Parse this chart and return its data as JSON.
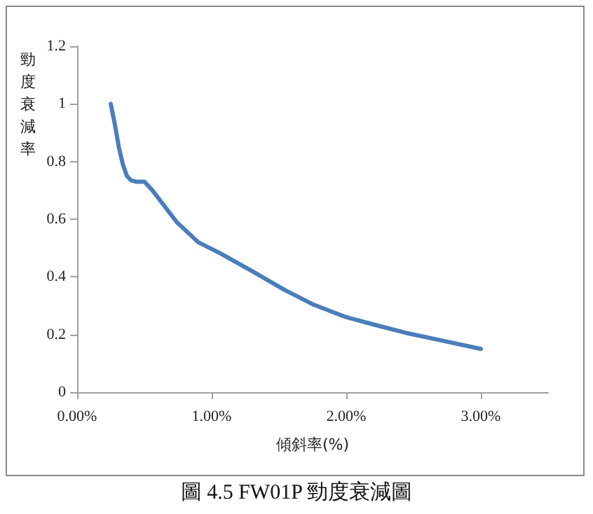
{
  "chart_data": {
    "type": "line",
    "title": "圖 4.5 FW01P 勁度衰減圖",
    "xlabel": "傾斜率(%)",
    "ylabel": "勁度衰減率",
    "series": [
      {
        "color": "#4a7ebb",
        "x": [
          0.25,
          0.28,
          0.31,
          0.34,
          0.37,
          0.4,
          0.44,
          0.5,
          0.56,
          0.65,
          0.74,
          0.9,
          1.07,
          1.3,
          1.54,
          1.75,
          2.0,
          2.2,
          2.44,
          2.7,
          3.0
        ],
        "values": [
          1.0,
          0.93,
          0.85,
          0.79,
          0.75,
          0.735,
          0.73,
          0.73,
          0.7,
          0.645,
          0.59,
          0.52,
          0.48,
          0.42,
          0.355,
          0.305,
          0.26,
          0.235,
          0.206,
          0.18,
          0.15
        ]
      }
    ],
    "xlim": [
      0,
      3.5
    ],
    "xticks": [
      {
        "value": 0,
        "label": "0.00%"
      },
      {
        "value": 1,
        "label": "1.00%"
      },
      {
        "value": 2,
        "label": "2.00%"
      },
      {
        "value": 3,
        "label": "3.00%"
      }
    ],
    "ylim": [
      0,
      1.2
    ],
    "yticks": [
      0,
      0.2,
      0.4,
      0.6,
      0.8,
      1,
      1.2
    ],
    "grid": false,
    "marker": "none",
    "line_style": "solid"
  }
}
